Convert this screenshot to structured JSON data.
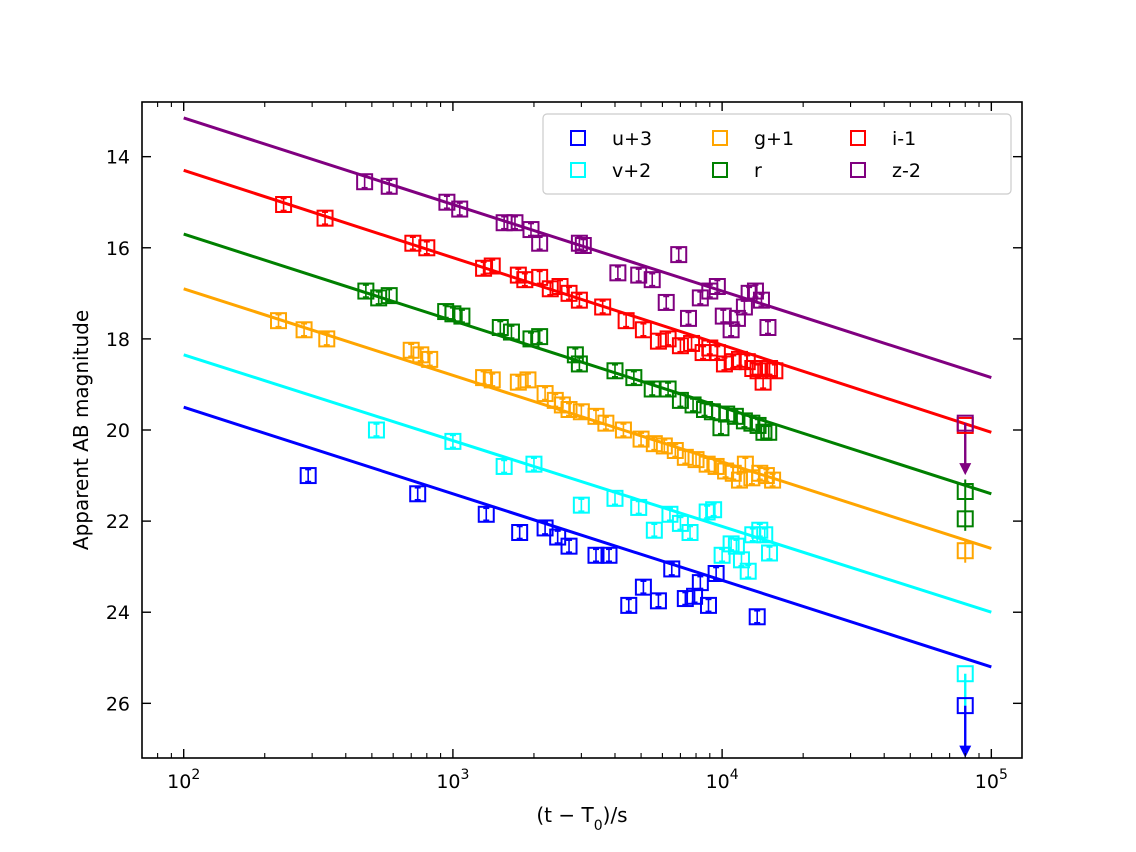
{
  "chart_data": {
    "type": "scatter",
    "title": "",
    "xlabel_main": "(t − T",
    "xlabel_sub": "0",
    "xlabel_tail": ")/s",
    "ylabel": "Apparent AB magnitude",
    "xscale": "log",
    "xlim": [
      70,
      130000
    ],
    "ylim": [
      27.2,
      12.8
    ],
    "y_inverted": true,
    "x_ticks": [
      {
        "value": 100,
        "base": "10",
        "exp": "2"
      },
      {
        "value": 1000,
        "base": "10",
        "exp": "3"
      },
      {
        "value": 10000,
        "base": "10",
        "exp": "4"
      },
      {
        "value": 100000,
        "base": "10",
        "exp": "5"
      }
    ],
    "y_ticks": [
      {
        "value": 14,
        "label": "14"
      },
      {
        "value": 16,
        "label": "16"
      },
      {
        "value": 18,
        "label": "18"
      },
      {
        "value": 20,
        "label": "20"
      },
      {
        "value": 22,
        "label": "22"
      },
      {
        "value": 24,
        "label": "24"
      },
      {
        "value": 26,
        "label": "26"
      }
    ],
    "legend_position": "top-right",
    "series": [
      {
        "name": "u+3",
        "color": "#0000ff",
        "legend_col": 0,
        "legend_row": 0,
        "fit": {
          "x": [
            100,
            100000
          ],
          "y": [
            19.5,
            25.2
          ]
        },
        "points": [
          [
            290,
            21.0
          ],
          [
            740,
            21.4
          ],
          [
            1330,
            21.85
          ],
          [
            1770,
            22.25
          ],
          [
            2200,
            22.15
          ],
          [
            2450,
            22.35
          ],
          [
            2700,
            22.55
          ],
          [
            3400,
            22.75
          ],
          [
            3800,
            22.75
          ],
          [
            4500,
            23.85
          ],
          [
            5100,
            23.45
          ],
          [
            5800,
            23.75
          ],
          [
            6500,
            23.05
          ],
          [
            7300,
            23.7
          ],
          [
            7900,
            23.65
          ],
          [
            8300,
            23.35
          ],
          [
            8900,
            23.85
          ],
          [
            9500,
            23.15
          ],
          [
            13500,
            24.1
          ]
        ],
        "upper_limits": [
          [
            80000,
            26.05
          ]
        ]
      },
      {
        "name": "v+2",
        "color": "#00ffff",
        "legend_col": 0,
        "legend_row": 1,
        "fit": {
          "x": [
            100,
            100000
          ],
          "y": [
            18.35,
            24.0
          ]
        },
        "points": [
          [
            520,
            20.0
          ],
          [
            1000,
            20.25
          ],
          [
            1550,
            20.8
          ],
          [
            2000,
            20.75
          ],
          [
            3000,
            21.65
          ],
          [
            4000,
            21.5
          ],
          [
            4900,
            21.7
          ],
          [
            5600,
            22.2
          ],
          [
            6400,
            21.85
          ],
          [
            7000,
            22.05
          ],
          [
            7600,
            22.25
          ],
          [
            8800,
            21.8
          ],
          [
            9300,
            21.75
          ],
          [
            10000,
            22.75
          ],
          [
            10800,
            22.5
          ],
          [
            11300,
            22.55
          ],
          [
            11800,
            22.85
          ],
          [
            12500,
            23.1
          ],
          [
            13000,
            22.3
          ],
          [
            13800,
            22.2
          ],
          [
            14400,
            22.3
          ],
          [
            15000,
            22.7
          ]
        ],
        "upper_limits": [
          [
            80000,
            25.35
          ]
        ]
      },
      {
        "name": "g+1",
        "color": "#ffa500",
        "legend_col": 1,
        "legend_row": 0,
        "fit": {
          "x": [
            100,
            100000
          ],
          "y": [
            16.9,
            22.6
          ]
        },
        "points": [
          [
            225,
            17.6
          ],
          [
            280,
            17.8
          ],
          [
            340,
            18.0
          ],
          [
            700,
            18.25
          ],
          [
            760,
            18.35
          ],
          [
            820,
            18.45
          ],
          [
            1300,
            18.85
          ],
          [
            1400,
            18.9
          ],
          [
            1750,
            18.95
          ],
          [
            1900,
            18.9
          ],
          [
            2200,
            19.2
          ],
          [
            2400,
            19.35
          ],
          [
            2550,
            19.45
          ],
          [
            2700,
            19.55
          ],
          [
            3000,
            19.6
          ],
          [
            3400,
            19.7
          ],
          [
            3700,
            19.85
          ],
          [
            4300,
            20.0
          ],
          [
            5000,
            20.2
          ],
          [
            5600,
            20.3
          ],
          [
            6100,
            20.35
          ],
          [
            6700,
            20.45
          ],
          [
            7300,
            20.6
          ],
          [
            8000,
            20.65
          ],
          [
            8800,
            20.75
          ],
          [
            9500,
            20.8
          ],
          [
            10300,
            20.9
          ],
          [
            11000,
            20.95
          ],
          [
            11600,
            21.1
          ],
          [
            12200,
            20.75
          ],
          [
            12900,
            21.05
          ],
          [
            13800,
            20.95
          ],
          [
            14600,
            21.0
          ],
          [
            15400,
            21.1
          ]
        ],
        "upper_limits": [
          [
            80000,
            22.65
          ]
        ]
      },
      {
        "name": "r",
        "color": "#008000",
        "legend_col": 1,
        "legend_row": 1,
        "fit": {
          "x": [
            100,
            100000
          ],
          "y": [
            15.7,
            21.4
          ]
        },
        "points": [
          [
            475,
            16.95
          ],
          [
            530,
            17.1
          ],
          [
            580,
            17.05
          ],
          [
            940,
            17.4
          ],
          [
            1000,
            17.45
          ],
          [
            1080,
            17.5
          ],
          [
            1500,
            17.75
          ],
          [
            1650,
            17.85
          ],
          [
            1950,
            18.0
          ],
          [
            2100,
            17.95
          ],
          [
            2850,
            18.35
          ],
          [
            2950,
            18.55
          ],
          [
            4000,
            18.7
          ],
          [
            4700,
            18.85
          ],
          [
            5500,
            19.1
          ],
          [
            6300,
            19.1
          ],
          [
            7000,
            19.35
          ],
          [
            7800,
            19.45
          ],
          [
            8600,
            19.55
          ],
          [
            9200,
            19.6
          ],
          [
            9900,
            19.95
          ],
          [
            10400,
            19.65
          ],
          [
            11200,
            19.7
          ],
          [
            12100,
            19.8
          ],
          [
            12900,
            19.85
          ],
          [
            13600,
            19.9
          ],
          [
            14300,
            20.05
          ],
          [
            14900,
            20.05
          ]
        ],
        "upper_limits": [
          [
            80000,
            21.35
          ],
          [
            80000,
            21.95
          ]
        ]
      },
      {
        "name": "i-1",
        "color": "#ff0000",
        "legend_col": 2,
        "legend_row": 0,
        "fit": {
          "x": [
            100,
            100000
          ],
          "y": [
            14.3,
            20.05
          ]
        },
        "points": [
          [
            235,
            15.05
          ],
          [
            335,
            15.35
          ],
          [
            710,
            15.9
          ],
          [
            800,
            16.0
          ],
          [
            1300,
            16.45
          ],
          [
            1400,
            16.4
          ],
          [
            1750,
            16.6
          ],
          [
            1850,
            16.7
          ],
          [
            2100,
            16.65
          ],
          [
            2300,
            16.9
          ],
          [
            2500,
            16.85
          ],
          [
            2700,
            17.0
          ],
          [
            2950,
            17.15
          ],
          [
            3600,
            17.3
          ],
          [
            4400,
            17.6
          ],
          [
            5100,
            17.8
          ],
          [
            5800,
            18.05
          ],
          [
            6300,
            18.0
          ],
          [
            7000,
            18.15
          ],
          [
            7700,
            18.1
          ],
          [
            8500,
            18.3
          ],
          [
            9000,
            18.2
          ],
          [
            9600,
            18.3
          ],
          [
            10200,
            18.55
          ],
          [
            11000,
            18.5
          ],
          [
            11600,
            18.45
          ],
          [
            12400,
            18.5
          ],
          [
            13000,
            18.65
          ],
          [
            13600,
            18.7
          ],
          [
            14200,
            18.95
          ],
          [
            15000,
            18.65
          ],
          [
            15700,
            18.7
          ]
        ],
        "upper_limits": [
          [
            80000,
            19.9
          ]
        ]
      },
      {
        "name": "z-2",
        "color": "#800080",
        "legend_col": 2,
        "legend_row": 1,
        "fit": {
          "x": [
            100,
            100000
          ],
          "y": [
            13.15,
            18.85
          ]
        },
        "points": [
          [
            470,
            14.55
          ],
          [
            580,
            14.65
          ],
          [
            950,
            15.0
          ],
          [
            1060,
            15.15
          ],
          [
            1550,
            15.45
          ],
          [
            1700,
            15.45
          ],
          [
            1950,
            15.6
          ],
          [
            2100,
            15.9
          ],
          [
            2950,
            15.9
          ],
          [
            3050,
            15.95
          ],
          [
            4100,
            16.55
          ],
          [
            4900,
            16.6
          ],
          [
            5500,
            16.7
          ],
          [
            6200,
            17.2
          ],
          [
            6900,
            16.15
          ],
          [
            7500,
            17.55
          ],
          [
            8300,
            17.1
          ],
          [
            9000,
            16.95
          ],
          [
            9600,
            16.85
          ],
          [
            10100,
            17.5
          ],
          [
            10800,
            17.8
          ],
          [
            11400,
            17.55
          ],
          [
            12100,
            17.3
          ],
          [
            12600,
            17.0
          ],
          [
            13300,
            16.95
          ],
          [
            14000,
            17.15
          ],
          [
            14800,
            17.75
          ]
        ],
        "upper_limits": [
          [
            80000,
            19.85
          ]
        ]
      }
    ]
  }
}
